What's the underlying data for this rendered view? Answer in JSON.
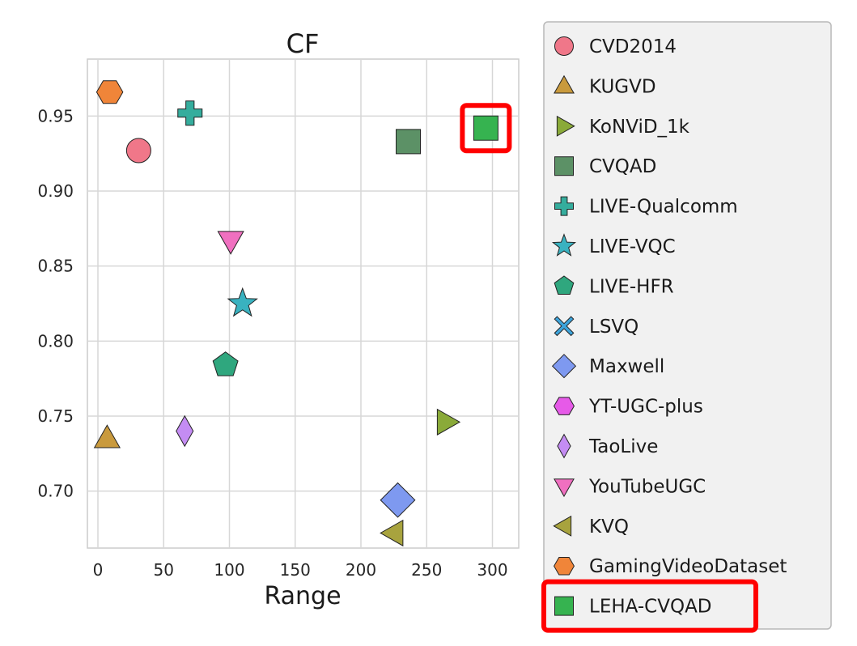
{
  "chart_data": {
    "type": "scatter",
    "title": "CF",
    "xlabel": "Range",
    "ylabel": "",
    "xlim": [
      -8,
      320
    ],
    "ylim": [
      0.662,
      0.988
    ],
    "grid": true,
    "legend_position": "right",
    "xticks": [
      {
        "value": 0,
        "label": "0"
      },
      {
        "value": 50,
        "label": "50"
      },
      {
        "value": 100,
        "label": "100"
      },
      {
        "value": 150,
        "label": "150"
      },
      {
        "value": 200,
        "label": "200"
      },
      {
        "value": 250,
        "label": "250"
      },
      {
        "value": 300,
        "label": "300"
      }
    ],
    "yticks": [
      {
        "value": 0.7,
        "label": "0.70"
      },
      {
        "value": 0.75,
        "label": "0.75"
      },
      {
        "value": 0.8,
        "label": "0.80"
      },
      {
        "value": 0.85,
        "label": "0.85"
      },
      {
        "value": 0.9,
        "label": "0.90"
      },
      {
        "value": 0.95,
        "label": "0.95"
      }
    ],
    "highlighted": "LEHA-CVQAD",
    "highlight_color": "#ff0000",
    "series": [
      {
        "name": "CVD2014",
        "marker": "circle",
        "color": "#f07789",
        "x": 31,
        "y": 0.927
      },
      {
        "name": "KUGVD",
        "marker": "triangle-up",
        "color": "#c99a3d",
        "x": 7,
        "y": 0.735
      },
      {
        "name": "KoNViD_1k",
        "marker": "triangle-right",
        "color": "#8aaa39",
        "x": 265,
        "y": 0.746
      },
      {
        "name": "CVQAD",
        "marker": "square",
        "color": "#5c9166",
        "x": 236,
        "y": 0.933
      },
      {
        "name": "LIVE-Qualcomm",
        "marker": "plus",
        "color": "#35ad9d",
        "x": 70,
        "y": 0.952
      },
      {
        "name": "LIVE-VQC",
        "marker": "star",
        "color": "#39b2c0",
        "x": 110,
        "y": 0.825
      },
      {
        "name": "LIVE-HFR",
        "marker": "pentagon",
        "color": "#2fa77e",
        "x": 97,
        "y": 0.784
      },
      {
        "name": "LSVQ",
        "marker": "x",
        "color": "#3da4dc",
        "x": null,
        "y": null
      },
      {
        "name": "Maxwell",
        "marker": "diamond",
        "color": "#7e99f0",
        "x": 228,
        "y": 0.694
      },
      {
        "name": "YT-UGC-plus",
        "marker": "hexagon",
        "color": "#e65ae8",
        "x": null,
        "y": null
      },
      {
        "name": "TaoLive",
        "marker": "thin-diamond",
        "color": "#c48cf3",
        "x": 66,
        "y": 0.74
      },
      {
        "name": "YouTubeUGC",
        "marker": "triangle-down",
        "color": "#f070c0",
        "x": 101,
        "y": 0.867
      },
      {
        "name": "KVQ",
        "marker": "triangle-left",
        "color": "#a8a33e",
        "x": 225,
        "y": 0.672
      },
      {
        "name": "GamingVideoDataset",
        "marker": "hexagon",
        "color": "#f08539",
        "x": 9,
        "y": 0.966
      },
      {
        "name": "LEHA-CVQAD",
        "marker": "square",
        "color": "#36b350",
        "x": 295,
        "y": 0.942
      }
    ]
  }
}
